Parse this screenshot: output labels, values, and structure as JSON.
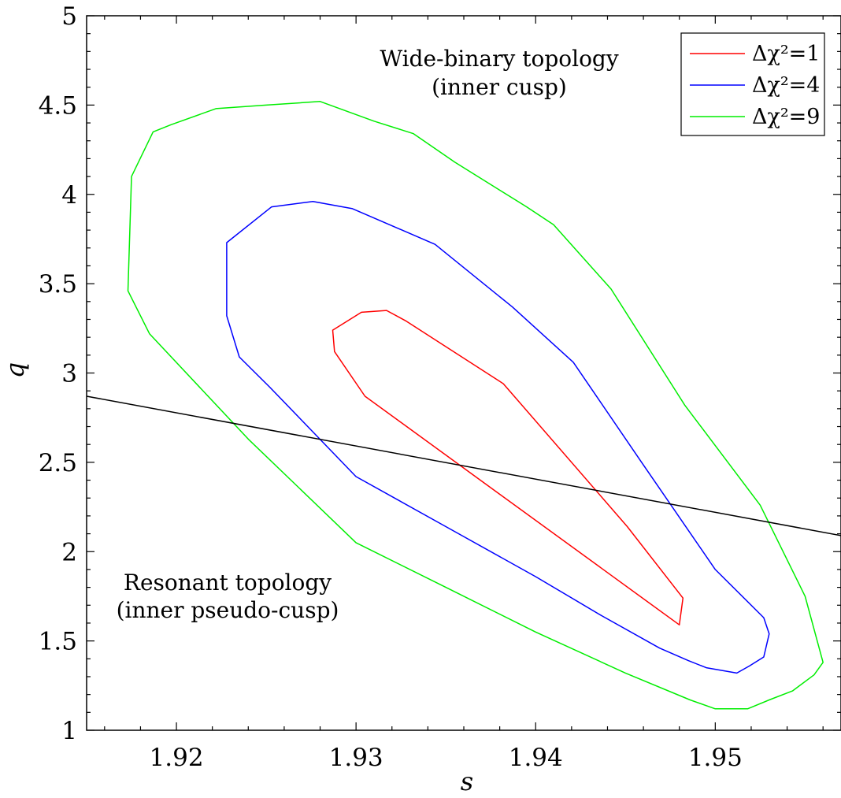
{
  "chart_data": {
    "type": "line",
    "xlabel": "s",
    "ylabel": "q",
    "xlim": [
      1.915,
      1.957
    ],
    "ylim": [
      1,
      5
    ],
    "x_ticks": [
      1.92,
      1.93,
      1.94,
      1.95
    ],
    "x_tick_labels": [
      "1.92",
      "1.93",
      "1.94",
      "1.95"
    ],
    "y_ticks": [
      1,
      1.5,
      2,
      2.5,
      3,
      3.5,
      4,
      4.5,
      5
    ],
    "y_tick_labels": [
      "1",
      "1.5",
      "2",
      "2.5",
      "3",
      "3.5",
      "4",
      "4.5",
      "5"
    ],
    "grid": false,
    "legend_position": "top-right",
    "annotations": [
      {
        "line1": "Wide-binary topology",
        "line2": "(inner cusp)",
        "x": 1.937,
        "y": 4.68
      },
      {
        "line1": "Resonant topology",
        "line2": "(inner pseudo-cusp)",
        "x": 1.922,
        "y": 1.78
      }
    ],
    "boundary_line": {
      "color": "#000000",
      "points": [
        [
          1.915,
          2.87
        ],
        [
          1.957,
          2.09
        ]
      ]
    },
    "series": [
      {
        "name": "Δχ²=1",
        "color": "#ff0000",
        "closed": true,
        "points": [
          [
            1.9317,
            3.35
          ],
          [
            1.9328,
            3.29
          ],
          [
            1.9382,
            2.94
          ],
          [
            1.9451,
            2.14
          ],
          [
            1.9482,
            1.74
          ],
          [
            1.948,
            1.59
          ],
          [
            1.9305,
            2.87
          ],
          [
            1.9288,
            3.12
          ],
          [
            1.9287,
            3.24
          ],
          [
            1.9303,
            3.34
          ]
        ]
      },
      {
        "name": "Δχ²=4",
        "color": "#0000ff",
        "closed": true,
        "points": [
          [
            1.9228,
            3.73
          ],
          [
            1.9253,
            3.93
          ],
          [
            1.9276,
            3.96
          ],
          [
            1.9298,
            3.92
          ],
          [
            1.9344,
            3.72
          ],
          [
            1.9387,
            3.37
          ],
          [
            1.9421,
            3.06
          ],
          [
            1.9459,
            2.5
          ],
          [
            1.95,
            1.9
          ],
          [
            1.9527,
            1.63
          ],
          [
            1.953,
            1.54
          ],
          [
            1.9527,
            1.41
          ],
          [
            1.9519,
            1.36
          ],
          [
            1.9512,
            1.32
          ],
          [
            1.9495,
            1.35
          ],
          [
            1.9485,
            1.39
          ],
          [
            1.9469,
            1.46
          ],
          [
            1.9437,
            1.64
          ],
          [
            1.94,
            1.86
          ],
          [
            1.935,
            2.14
          ],
          [
            1.93,
            2.42
          ],
          [
            1.9252,
            2.92
          ],
          [
            1.9235,
            3.09
          ],
          [
            1.9228,
            3.32
          ]
        ]
      },
      {
        "name": "Δχ²=9",
        "color": "#00ee00",
        "closed": true,
        "points": [
          [
            1.9175,
            4.1
          ],
          [
            1.9187,
            4.35
          ],
          [
            1.9197,
            4.39
          ],
          [
            1.9222,
            4.48
          ],
          [
            1.925,
            4.5
          ],
          [
            1.928,
            4.52
          ],
          [
            1.931,
            4.41
          ],
          [
            1.9332,
            4.34
          ],
          [
            1.9355,
            4.18
          ],
          [
            1.9395,
            3.93
          ],
          [
            1.941,
            3.83
          ],
          [
            1.9442,
            3.47
          ],
          [
            1.9483,
            2.82
          ],
          [
            1.9525,
            2.26
          ],
          [
            1.955,
            1.75
          ],
          [
            1.956,
            1.38
          ],
          [
            1.9555,
            1.31
          ],
          [
            1.9543,
            1.22
          ],
          [
            1.953,
            1.17
          ],
          [
            1.9518,
            1.12
          ],
          [
            1.95,
            1.12
          ],
          [
            1.9486,
            1.17
          ],
          [
            1.945,
            1.32
          ],
          [
            1.94,
            1.55
          ],
          [
            1.935,
            1.8
          ],
          [
            1.93,
            2.05
          ],
          [
            1.924,
            2.63
          ],
          [
            1.9185,
            3.22
          ],
          [
            1.9173,
            3.46
          ]
        ]
      }
    ]
  }
}
